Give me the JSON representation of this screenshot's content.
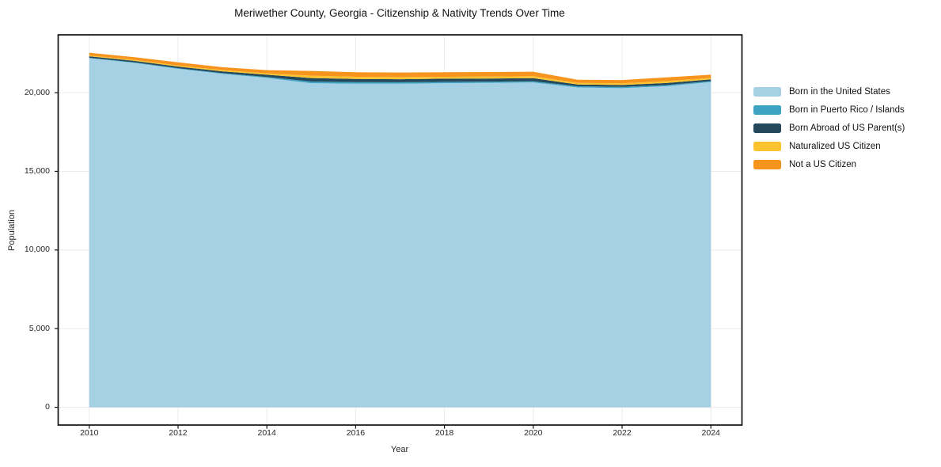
{
  "chart_data": {
    "type": "area",
    "stacked": true,
    "title": "Meriwether County, Georgia - Citizenship & Nativity Trends Over Time",
    "xlabel": "Year",
    "ylabel": "Population",
    "x": [
      2010,
      2011,
      2012,
      2013,
      2014,
      2015,
      2016,
      2017,
      2018,
      2019,
      2020,
      2021,
      2022,
      2023,
      2024
    ],
    "series": [
      {
        "name": "Born in the United States",
        "color": "#a6d1e4",
        "values": [
          22190,
          21900,
          21520,
          21200,
          20940,
          20600,
          20570,
          20570,
          20600,
          20620,
          20650,
          20330,
          20290,
          20410,
          20680
        ]
      },
      {
        "name": "Born in Puerto Rico / Islands",
        "color": "#3ea3c3",
        "values": [
          30,
          35,
          40,
          45,
          60,
          110,
          100,
          95,
          90,
          85,
          80,
          75,
          80,
          75,
          60
        ]
      },
      {
        "name": "Born Abroad of US Parent(s)",
        "color": "#24485c",
        "values": [
          90,
          95,
          100,
          110,
          140,
          220,
          200,
          190,
          200,
          195,
          190,
          115,
          120,
          130,
          105
        ]
      },
      {
        "name": "Naturalized US Citizen",
        "color": "#fcc32e",
        "values": [
          50,
          60,
          70,
          75,
          90,
          150,
          140,
          135,
          120,
          125,
          130,
          100,
          105,
          120,
          95
        ]
      },
      {
        "name": "Not a US Citizen",
        "color": "#f7941d",
        "values": [
          180,
          170,
          200,
          190,
          200,
          300,
          290,
          290,
          290,
          285,
          280,
          200,
          205,
          235,
          200
        ]
      }
    ],
    "xlim": [
      2009.3,
      2024.7
    ],
    "ylim": [
      -1128,
      23677
    ],
    "x_ticks": [
      2010,
      2012,
      2014,
      2016,
      2018,
      2020,
      2022,
      2024
    ],
    "x_tick_labels": [
      "2010",
      "2012",
      "2014",
      "2016",
      "2018",
      "2020",
      "2022",
      "2024"
    ],
    "y_ticks": [
      0,
      5000,
      10000,
      15000,
      20000
    ],
    "y_tick_labels": [
      "0",
      "5,000",
      "10,000",
      "15,000",
      "20,000"
    ],
    "grid": true,
    "legend_position": "right of plot, upper area, no frame"
  },
  "style_colors": {
    "grid": "#ebebeb",
    "axis_border": "#111111",
    "tick_text": "#262626",
    "background": "#ffffff"
  }
}
